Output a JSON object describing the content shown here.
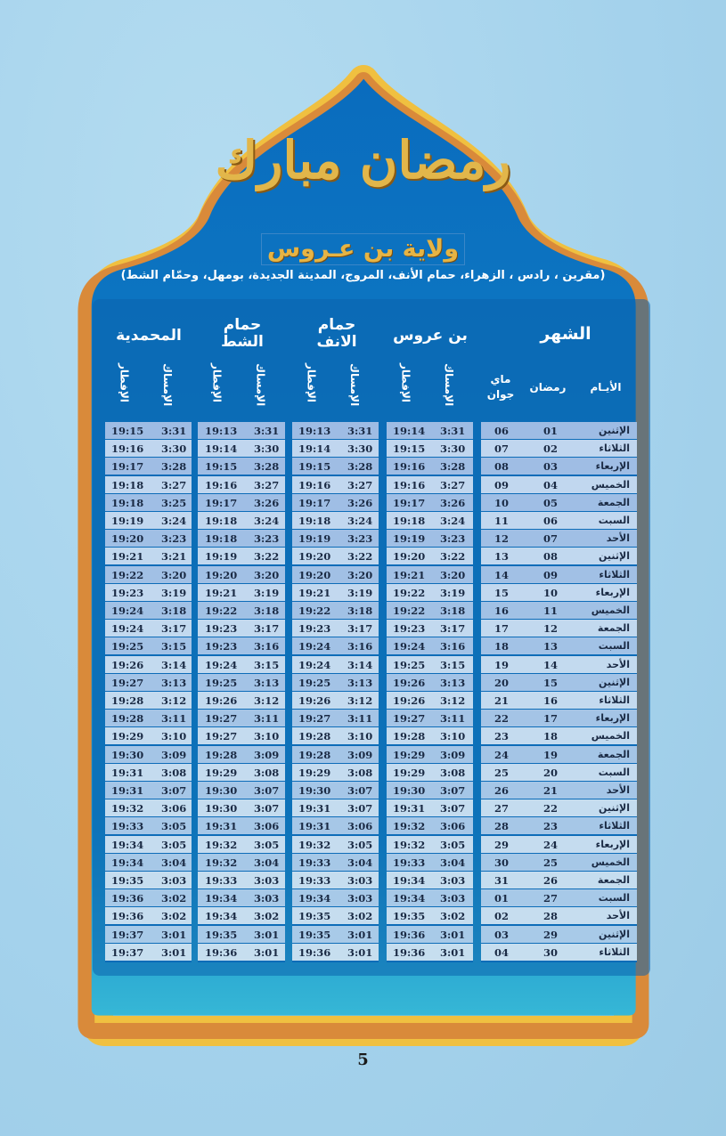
{
  "logo_text": "رمضان مبارك",
  "title": "ولاية بن عـروس",
  "subtitle": "(مقرين ، رادس ، الزهراء، حمام الأنف، المروج، المدينة الجديدة، بومهل، وحمّام الشط)",
  "headers": {
    "month": "الشهر",
    "days": "الأيـام",
    "ramadan": "رمضان",
    "gregorian": "ماي جوان",
    "imsak": "الإمساك",
    "iftar": "الإفطار",
    "groups": [
      "بن عروس",
      "حمام الانف",
      "حمام الشط",
      "المحمدية"
    ]
  },
  "colors": {
    "frame_gold": "#f0c040",
    "frame_orange": "#d98a3a",
    "panel_blue": "#0a6cbe",
    "row_dark": "#a2bfe6",
    "row_light": "#c3d7ef"
  },
  "rows": [
    [
      "الإثنين",
      "01",
      "06",
      "3:31",
      "19:14",
      "3:31",
      "19:13",
      "3:31",
      "19:13",
      "3:31",
      "19:15"
    ],
    [
      "الثلاثاء",
      "02",
      "07",
      "3:30",
      "19:15",
      "3:30",
      "19:14",
      "3:30",
      "19:14",
      "3:30",
      "19:16"
    ],
    [
      "الإربعاء",
      "03",
      "08",
      "3:28",
      "19:16",
      "3:28",
      "19:15",
      "3:28",
      "19:15",
      "3:28",
      "19:17"
    ],
    [
      "الخميس",
      "04",
      "09",
      "3:27",
      "19:16",
      "3:27",
      "19:16",
      "3:27",
      "19:16",
      "3:27",
      "19:18"
    ],
    [
      "الجمعة",
      "05",
      "10",
      "3:26",
      "19:17",
      "3:26",
      "19:17",
      "3:26",
      "19:17",
      "3:25",
      "19:18"
    ],
    [
      "السبت",
      "06",
      "11",
      "3:24",
      "19:18",
      "3:24",
      "19:18",
      "3:24",
      "19:18",
      "3:24",
      "19:19"
    ],
    [
      "الأحد",
      "07",
      "12",
      "3:23",
      "19:19",
      "3:23",
      "19:19",
      "3:23",
      "19:18",
      "3:23",
      "19:20"
    ],
    [
      "الإثنين",
      "08",
      "13",
      "3:22",
      "19:20",
      "3:22",
      "19:20",
      "3:22",
      "19:19",
      "3:21",
      "19:21"
    ],
    [
      "الثلاثاء",
      "09",
      "14",
      "3:20",
      "19:21",
      "3:20",
      "19:20",
      "3:20",
      "19:20",
      "3:20",
      "19:22"
    ],
    [
      "الإربعاء",
      "10",
      "15",
      "3:19",
      "19:22",
      "3:19",
      "19:21",
      "3:19",
      "19:21",
      "3:19",
      "19:23"
    ],
    [
      "الخميس",
      "11",
      "16",
      "3:18",
      "19:22",
      "3:18",
      "19:22",
      "3:18",
      "19:22",
      "3:18",
      "19:24"
    ],
    [
      "الجمعة",
      "12",
      "17",
      "3:17",
      "19:23",
      "3:17",
      "19:23",
      "3:17",
      "19:23",
      "3:17",
      "19:24"
    ],
    [
      "السبت",
      "13",
      "18",
      "3:16",
      "19:24",
      "3:16",
      "19:24",
      "3:16",
      "19:23",
      "3:15",
      "19:25"
    ],
    [
      "الأحد",
      "14",
      "19",
      "3:15",
      "19:25",
      "3:14",
      "19:24",
      "3:15",
      "19:24",
      "3:14",
      "19:26"
    ],
    [
      "الإثنين",
      "15",
      "20",
      "3:13",
      "19:26",
      "3:13",
      "19:25",
      "3:13",
      "19:25",
      "3:13",
      "19:27"
    ],
    [
      "الثلاثاء",
      "16",
      "21",
      "3:12",
      "19:26",
      "3:12",
      "19:26",
      "3:12",
      "19:26",
      "3:12",
      "19:28"
    ],
    [
      "الإربعاء",
      "17",
      "22",
      "3:11",
      "19:27",
      "3:11",
      "19:27",
      "3:11",
      "19:27",
      "3:11",
      "19:28"
    ],
    [
      "الخميس",
      "18",
      "23",
      "3:10",
      "19:28",
      "3:10",
      "19:28",
      "3:10",
      "19:27",
      "3:10",
      "19:29"
    ],
    [
      "الجمعة",
      "19",
      "24",
      "3:09",
      "19:29",
      "3:09",
      "19:28",
      "3:09",
      "19:28",
      "3:09",
      "19:30"
    ],
    [
      "السبت",
      "20",
      "25",
      "3:08",
      "19:29",
      "3:08",
      "19:29",
      "3:08",
      "19:29",
      "3:08",
      "19:31"
    ],
    [
      "الأحد",
      "21",
      "26",
      "3:07",
      "19:30",
      "3:07",
      "19:30",
      "3:07",
      "19:30",
      "3:07",
      "19:31"
    ],
    [
      "الإثنين",
      "22",
      "27",
      "3:07",
      "19:31",
      "3:07",
      "19:31",
      "3:07",
      "19:30",
      "3:06",
      "19:32"
    ],
    [
      "الثلاثاء",
      "23",
      "28",
      "3:06",
      "19:32",
      "3:06",
      "19:31",
      "3:06",
      "19:31",
      "3:05",
      "19:33"
    ],
    [
      "الإربعاء",
      "24",
      "29",
      "3:05",
      "19:32",
      "3:05",
      "19:32",
      "3:05",
      "19:32",
      "3:05",
      "19:34"
    ],
    [
      "الخميس",
      "25",
      "30",
      "3:04",
      "19:33",
      "3:04",
      "19:33",
      "3:04",
      "19:32",
      "3:04",
      "19:34"
    ],
    [
      "الجمعة",
      "26",
      "31",
      "3:03",
      "19:34",
      "3:03",
      "19:33",
      "3:03",
      "19:33",
      "3:03",
      "19:35"
    ],
    [
      "السبت",
      "27",
      "01",
      "3:03",
      "19:34",
      "3:03",
      "19:34",
      "3:03",
      "19:34",
      "3:02",
      "19:36"
    ],
    [
      "الأحد",
      "28",
      "02",
      "3:02",
      "19:35",
      "3:02",
      "19:35",
      "3:02",
      "19:34",
      "3:02",
      "19:36"
    ],
    [
      "الإثنين",
      "29",
      "03",
      "3:01",
      "19:36",
      "3:01",
      "19:35",
      "3:01",
      "19:35",
      "3:01",
      "19:37"
    ],
    [
      "الثلاثاء",
      "30",
      "04",
      "3:01",
      "19:36",
      "3:01",
      "19:36",
      "3:01",
      "19:36",
      "3:01",
      "19:37"
    ]
  ],
  "page_number": "5"
}
